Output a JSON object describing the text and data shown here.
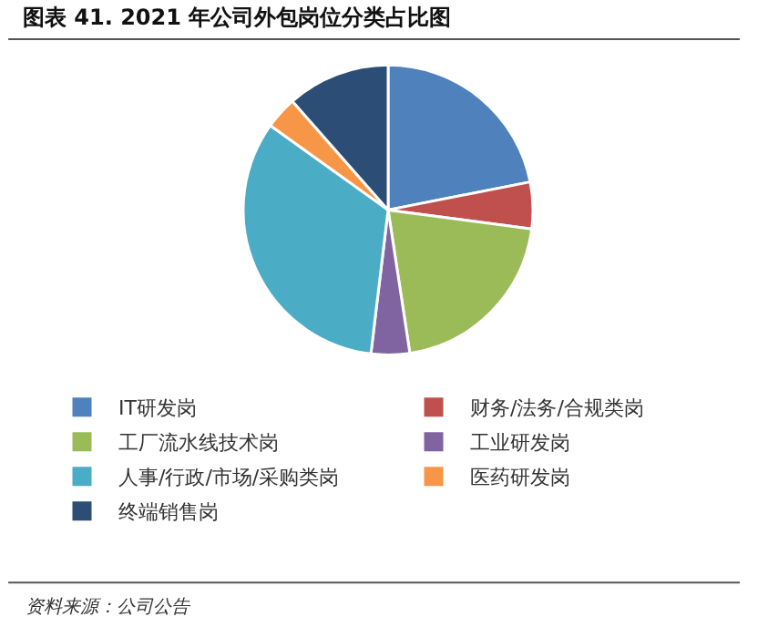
{
  "chart_data": {
    "type": "pie",
    "title": "图表 41. 2021 年公司外包岗位分类占比图",
    "categories": [
      "IT研发岗",
      "财务/法务/合规类岗",
      "工厂流水线技术岗",
      "工业研发岗",
      "人事/行政/市场/采购类岗",
      "医药研发岗",
      "终端销售岗"
    ],
    "values": [
      21.9,
      5.2,
      20.5,
      4.3,
      33,
      3.6,
      11.5
    ],
    "colors": [
      "#4f81bd",
      "#c0504d",
      "#9bbb59",
      "#8064a2",
      "#4bacc6",
      "#f79646",
      "#2c4d75"
    ],
    "legend": "bottom",
    "annotations": [
      "资料来源：公司公告"
    ]
  }
}
